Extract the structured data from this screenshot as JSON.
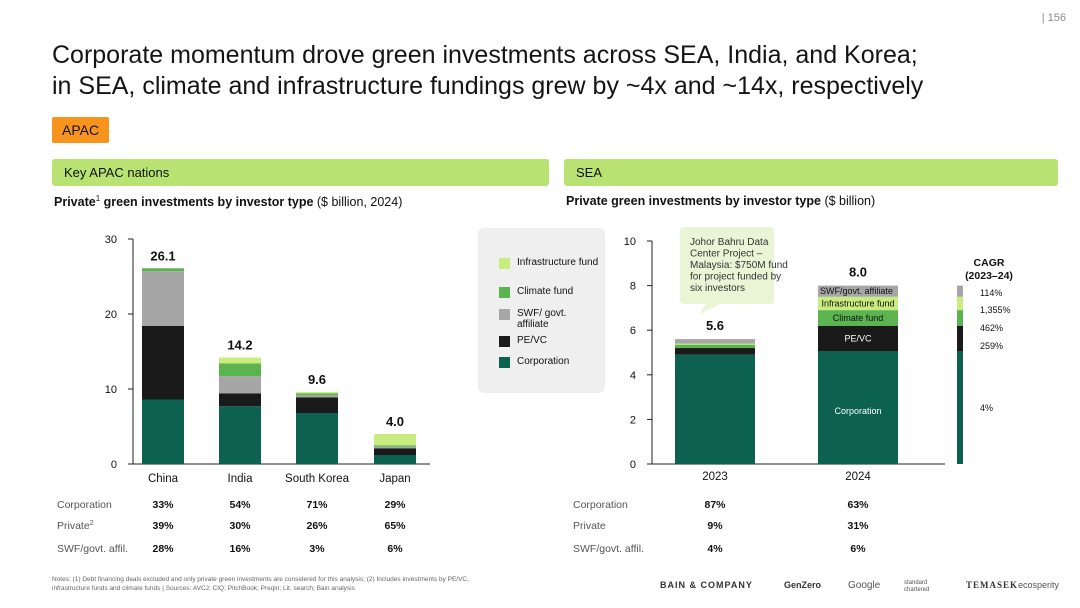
{
  "page_number": "| 156",
  "title_line1": "Corporate momentum drove green investments across SEA, India, and Korea;",
  "title_line2": "in SEA, climate and infrastructure fundings grew by ~4x and ~14x, respectively",
  "region_tag": "APAC",
  "left_section": {
    "header": "Key APAC nations",
    "subtitle_bold": "Private",
    "subtitle_sup": "1",
    "subtitle_bold2": " green investments by investor type",
    "subtitle_rest": " ($ billion, 2024)"
  },
  "right_section": {
    "header": "SEA",
    "subtitle_bold": "Private green investments by investor type",
    "subtitle_rest": " ($ billion)"
  },
  "legend": [
    {
      "label": "Infrastructure fund",
      "color": "#c9ec7e"
    },
    {
      "label": "Climate fund",
      "color": "#5bb450"
    },
    {
      "label": "SWF/ govt. affiliate",
      "color": "#a6a6a6"
    },
    {
      "label": "PE/VC",
      "color": "#1a1a1a"
    },
    {
      "label": "Corporation",
      "color": "#0d6150"
    }
  ],
  "colors": {
    "corporation": "#0d6150",
    "pevc": "#1a1a1a",
    "swf": "#a6a6a6",
    "climate": "#5bb450",
    "infra": "#c9ec7e",
    "callout": "#eaf5d6"
  },
  "chart_data": [
    {
      "type": "bar",
      "stacked": true,
      "title": "Private green investments by investor type ($ billion, 2024)",
      "categories": [
        "China",
        "India",
        "South Korea",
        "Japan"
      ],
      "ylim": [
        0,
        30
      ],
      "yticks": [
        0,
        10,
        20,
        30
      ],
      "totals": [
        "26.1",
        "14.2",
        "9.6",
        "4.0"
      ],
      "series": [
        {
          "name": "Corporation",
          "key": "corporation",
          "values": [
            8.6,
            7.7,
            6.8,
            1.2
          ]
        },
        {
          "name": "PE/VC",
          "key": "pevc",
          "values": [
            9.8,
            1.7,
            2.1,
            0.9
          ]
        },
        {
          "name": "SWF/govt. affiliate",
          "key": "swf",
          "values": [
            7.3,
            2.3,
            0.3,
            0.2
          ]
        },
        {
          "name": "Climate fund",
          "key": "climate",
          "values": [
            0.4,
            1.7,
            0.2,
            0.2
          ]
        },
        {
          "name": "Infrastructure fund",
          "key": "infra",
          "values": [
            0.0,
            0.8,
            0.2,
            1.5
          ]
        }
      ],
      "table": {
        "rows": [
          {
            "label": "Corporation",
            "values": [
              "33%",
              "54%",
              "71%",
              "29%"
            ]
          },
          {
            "label": "Private",
            "sup": "2",
            "values": [
              "39%",
              "30%",
              "26%",
              "65%"
            ]
          },
          {
            "label": "SWF/govt. affil.",
            "values": [
              "28%",
              "16%",
              "3%",
              "6%"
            ]
          }
        ]
      }
    },
    {
      "type": "bar",
      "stacked": true,
      "title": "Private green investments by investor type ($ billion)",
      "categories": [
        "2023",
        "2024"
      ],
      "ylim": [
        0,
        10
      ],
      "yticks": [
        0,
        2,
        4,
        6,
        8,
        10
      ],
      "totals": [
        "5.6",
        "8.0"
      ],
      "series": [
        {
          "name": "Corporation",
          "key": "corporation",
          "values": [
            4.9,
            5.05
          ],
          "label_2024": "Corporation"
        },
        {
          "name": "PE/VC",
          "key": "pevc",
          "values": [
            0.3,
            1.15
          ],
          "label_2024": "PE/VC"
        },
        {
          "name": "Climate fund",
          "key": "climate",
          "values": [
            0.15,
            0.7
          ],
          "label_2024": "Climate fund"
        },
        {
          "name": "Infrastructure fund",
          "key": "infra",
          "values": [
            0.05,
            0.6
          ],
          "label_2024": "Infrastructure fund"
        },
        {
          "name": "SWF/govt. affiliate",
          "key": "swf",
          "values": [
            0.2,
            0.5
          ],
          "label_2024": "SWF/govt. affiliate"
        }
      ],
      "callout": "Johor Bahru Data Center Project – Malaysia: $750M fund for project funded by six investors",
      "cagr": {
        "title_line1": "CAGR",
        "title_line2": "(2023–24)",
        "values": [
          {
            "series": "SWF/govt. affiliate",
            "value": "114%"
          },
          {
            "series": "Infrastructure fund",
            "value": "1,355%"
          },
          {
            "series": "Climate fund",
            "value": "462%"
          },
          {
            "series": "PE/VC",
            "value": "259%"
          },
          {
            "series": "Corporation",
            "value": "4%"
          }
        ]
      },
      "table": {
        "rows": [
          {
            "label": "Corporation",
            "values": [
              "87%",
              "63%"
            ]
          },
          {
            "label": "Private",
            "values": [
              "9%",
              "31%"
            ]
          },
          {
            "label": "SWF/govt. affil.",
            "values": [
              "4%",
              "6%"
            ]
          }
        ]
      }
    }
  ],
  "notes": "Notes: (1) Debt financing deals excluded and only private green investments are considered for this analysis; (2) Includes investments by PE/VC, infrastructure funds and climate funds | Sources: AVCJ; CIQ; PitchBook; Preqin; Lit. search; Bain analysis",
  "logos": [
    "BAIN & COMPANY",
    "GenZero",
    "Google",
    "standard chartered",
    "TEMASEK",
    "ecosperity"
  ]
}
